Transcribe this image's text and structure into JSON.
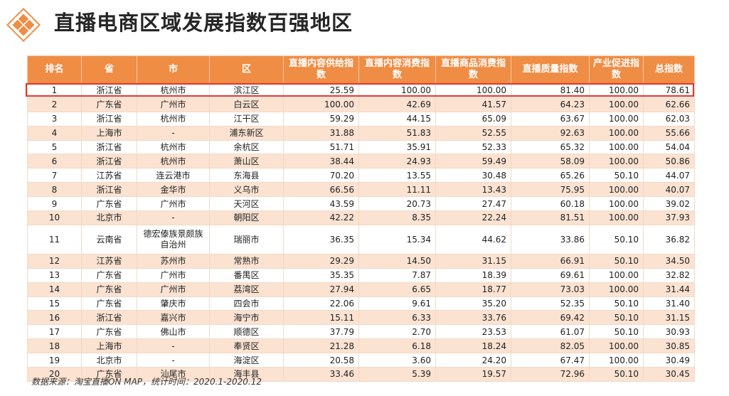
{
  "title": "直播电商区域发展指数百强地区",
  "header": [
    "排名",
    "省",
    "市",
    "区",
    "直播内容供给指数",
    "直播内容消费指数",
    "直播商品消费指数",
    "直播质量指数",
    "产业促进指数",
    "总指数"
  ],
  "rows": [
    [
      "1",
      "浙江省",
      "杭州市",
      "滨江区",
      "25.59",
      "100.00",
      "100.00",
      "81.40",
      "100.00",
      "78.61"
    ],
    [
      "2",
      "广东省",
      "广州市",
      "白云区",
      "100.00",
      "42.69",
      "41.57",
      "64.23",
      "100.00",
      "62.66"
    ],
    [
      "3",
      "浙江省",
      "杭州市",
      "江干区",
      "59.29",
      "44.15",
      "65.09",
      "63.67",
      "100.00",
      "62.03"
    ],
    [
      "4",
      "上海市",
      "-",
      "浦东新区",
      "31.88",
      "51.83",
      "52.55",
      "92.63",
      "100.00",
      "55.66"
    ],
    [
      "5",
      "浙江省",
      "杭州市",
      "余杭区",
      "51.71",
      "35.91",
      "52.33",
      "65.32",
      "100.00",
      "54.04"
    ],
    [
      "6",
      "浙江省",
      "杭州市",
      "萧山区",
      "38.44",
      "24.93",
      "59.49",
      "58.09",
      "100.00",
      "50.86"
    ],
    [
      "7",
      "江苏省",
      "连云港市",
      "东海县",
      "70.20",
      "13.55",
      "30.48",
      "65.26",
      "50.10",
      "44.07"
    ],
    [
      "8",
      "浙江省",
      "金华市",
      "义乌市",
      "66.56",
      "11.11",
      "13.43",
      "75.95",
      "100.00",
      "40.07"
    ],
    [
      "9",
      "广东省",
      "广州市",
      "天河区",
      "43.59",
      "20.73",
      "27.47",
      "60.18",
      "100.00",
      "39.02"
    ],
    [
      "10",
      "北京市",
      "-",
      "朝阳区",
      "42.22",
      "8.35",
      "22.24",
      "81.51",
      "100.00",
      "37.93"
    ],
    [
      "11",
      "云南省",
      "德宏傣族景颇族自治州",
      "瑞丽市",
      "36.35",
      "15.34",
      "44.62",
      "33.86",
      "50.10",
      "36.82"
    ],
    [
      "12",
      "江苏省",
      "苏州市",
      "常熟市",
      "29.29",
      "14.50",
      "31.15",
      "66.91",
      "50.10",
      "34.50"
    ],
    [
      "13",
      "广东省",
      "广州市",
      "番禺区",
      "35.35",
      "7.87",
      "18.39",
      "69.61",
      "100.00",
      "32.82"
    ],
    [
      "14",
      "广东省",
      "广州市",
      "荔湾区",
      "27.94",
      "6.65",
      "18.77",
      "73.03",
      "100.00",
      "31.44"
    ],
    [
      "15",
      "广东省",
      "肇庆市",
      "四会市",
      "22.06",
      "9.61",
      "35.20",
      "52.35",
      "50.10",
      "31.40"
    ],
    [
      "16",
      "浙江省",
      "嘉兴市",
      "海宁市",
      "15.11",
      "6.33",
      "33.76",
      "69.42",
      "50.10",
      "31.15"
    ],
    [
      "17",
      "广东省",
      "佛山市",
      "顺德区",
      "37.79",
      "2.70",
      "23.53",
      "61.07",
      "50.10",
      "30.93"
    ],
    [
      "18",
      "上海市",
      "-",
      "奉贤区",
      "21.28",
      "6.18",
      "18.24",
      "82.05",
      "100.00",
      "30.85"
    ],
    [
      "19",
      "北京市",
      "-",
      "海淀区",
      "20.58",
      "3.60",
      "24.20",
      "67.47",
      "100.00",
      "30.49"
    ],
    [
      "20",
      "广东省",
      "汕尾市",
      "海丰县",
      "33.46",
      "5.39",
      "19.57",
      "72.96",
      "50.10",
      "30.45"
    ]
  ],
  "footnote": "数据来源：淘宝直播ON MAP，统计时间：2020.1-2020.12",
  "colors": {
    "header_bg": "#ef8d45",
    "row_alt_bg": "#fbe2d1",
    "highlight_border": "#e8322b"
  },
  "logo_icon": "orange-diamond-icon"
}
